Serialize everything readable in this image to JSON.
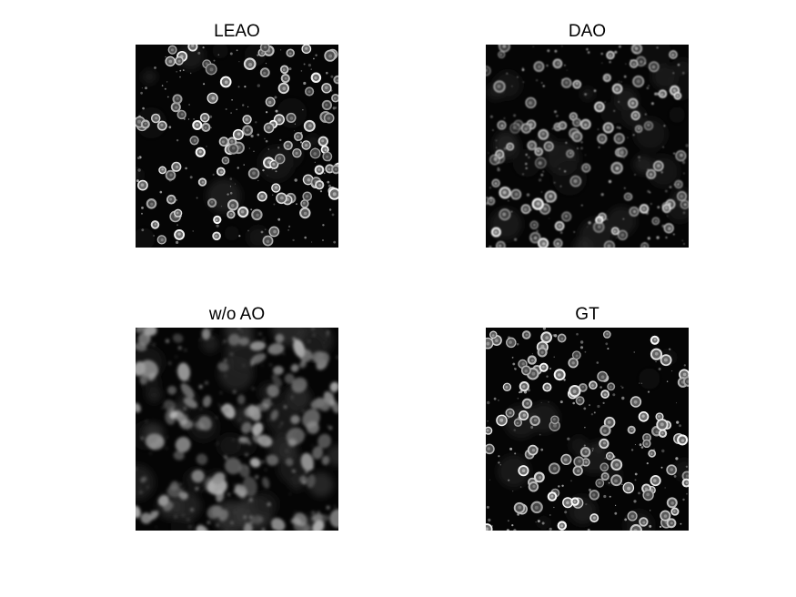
{
  "figure": {
    "panels": [
      {
        "title": "LEAO",
        "style": "sharp"
      },
      {
        "title": "DAO",
        "style": "soft"
      },
      {
        "title": "w/o AO",
        "style": "blurred"
      },
      {
        "title": "GT",
        "style": "sharp"
      }
    ]
  }
}
